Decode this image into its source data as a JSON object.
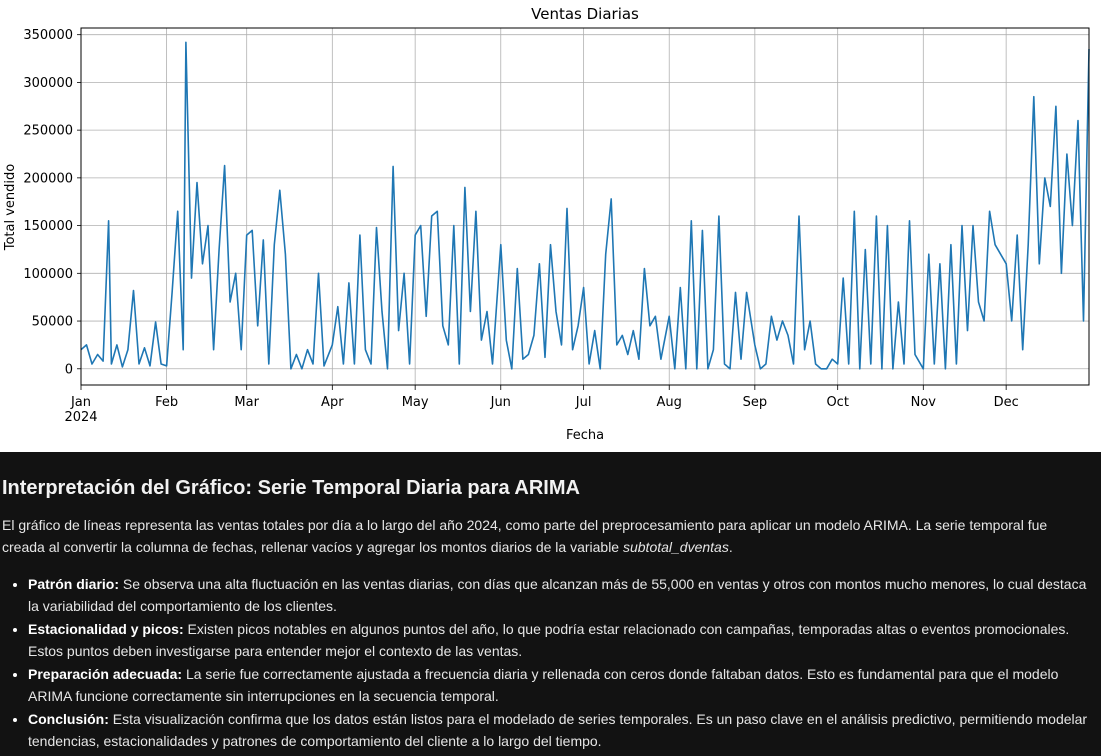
{
  "chart_data": {
    "type": "line",
    "title": "Ventas Diarias",
    "xlabel": "Fecha",
    "ylabel": "Total vendido",
    "ylim": [
      -17000,
      357000
    ],
    "yticks": [
      0,
      50000,
      100000,
      150000,
      200000,
      250000,
      300000,
      350000
    ],
    "ytick_labels": [
      "0",
      "50000",
      "100000",
      "150000",
      "200000",
      "250000",
      "300000",
      "350000"
    ],
    "xlim": [
      "2024-01-01",
      "2024-12-31"
    ],
    "xtick_labels": [
      "Jan",
      "Feb",
      "Mar",
      "Apr",
      "May",
      "Jun",
      "Jul",
      "Aug",
      "Sep",
      "Oct",
      "Nov",
      "Dec"
    ],
    "xtick_dates": [
      "2024-01-01",
      "2024-02-01",
      "2024-03-01",
      "2024-04-01",
      "2024-05-01",
      "2024-06-01",
      "2024-07-01",
      "2024-08-01",
      "2024-09-01",
      "2024-10-01",
      "2024-11-01",
      "2024-12-01"
    ],
    "year_label": "2024",
    "grid": true,
    "series_color": "#1f77b4",
    "x": [
      "2024-01-01",
      "2024-01-03",
      "2024-01-05",
      "2024-01-07",
      "2024-01-09",
      "2024-01-11",
      "2024-01-12",
      "2024-01-14",
      "2024-01-16",
      "2024-01-18",
      "2024-01-20",
      "2024-01-22",
      "2024-01-24",
      "2024-01-26",
      "2024-01-28",
      "2024-01-30",
      "2024-02-01",
      "2024-02-03",
      "2024-02-05",
      "2024-02-07",
      "2024-02-08",
      "2024-02-10",
      "2024-02-12",
      "2024-02-14",
      "2024-02-16",
      "2024-02-18",
      "2024-02-20",
      "2024-02-22",
      "2024-02-24",
      "2024-02-26",
      "2024-02-28",
      "2024-03-01",
      "2024-03-03",
      "2024-03-05",
      "2024-03-07",
      "2024-03-09",
      "2024-03-11",
      "2024-03-13",
      "2024-03-15",
      "2024-03-17",
      "2024-03-19",
      "2024-03-21",
      "2024-03-23",
      "2024-03-25",
      "2024-03-27",
      "2024-03-29",
      "2024-04-01",
      "2024-04-03",
      "2024-04-05",
      "2024-04-07",
      "2024-04-09",
      "2024-04-11",
      "2024-04-13",
      "2024-04-15",
      "2024-04-17",
      "2024-04-19",
      "2024-04-21",
      "2024-04-23",
      "2024-04-25",
      "2024-04-27",
      "2024-04-29",
      "2024-05-01",
      "2024-05-03",
      "2024-05-05",
      "2024-05-07",
      "2024-05-09",
      "2024-05-11",
      "2024-05-13",
      "2024-05-15",
      "2024-05-17",
      "2024-05-19",
      "2024-05-21",
      "2024-05-23",
      "2024-05-25",
      "2024-05-27",
      "2024-05-29",
      "2024-06-01",
      "2024-06-03",
      "2024-06-05",
      "2024-06-07",
      "2024-06-09",
      "2024-06-11",
      "2024-06-13",
      "2024-06-15",
      "2024-06-17",
      "2024-06-19",
      "2024-06-21",
      "2024-06-23",
      "2024-06-25",
      "2024-06-27",
      "2024-06-29",
      "2024-07-01",
      "2024-07-03",
      "2024-07-05",
      "2024-07-07",
      "2024-07-09",
      "2024-07-11",
      "2024-07-13",
      "2024-07-15",
      "2024-07-17",
      "2024-07-19",
      "2024-07-21",
      "2024-07-23",
      "2024-07-25",
      "2024-07-27",
      "2024-07-29",
      "2024-08-01",
      "2024-08-03",
      "2024-08-05",
      "2024-08-07",
      "2024-08-09",
      "2024-08-11",
      "2024-08-13",
      "2024-08-15",
      "2024-08-17",
      "2024-08-19",
      "2024-08-21",
      "2024-08-23",
      "2024-08-25",
      "2024-08-27",
      "2024-08-29",
      "2024-09-01",
      "2024-09-03",
      "2024-09-05",
      "2024-09-07",
      "2024-09-09",
      "2024-09-11",
      "2024-09-13",
      "2024-09-15",
      "2024-09-17",
      "2024-09-19",
      "2024-09-21",
      "2024-09-23",
      "2024-09-25",
      "2024-09-27",
      "2024-09-29",
      "2024-10-01",
      "2024-10-03",
      "2024-10-05",
      "2024-10-07",
      "2024-10-09",
      "2024-10-11",
      "2024-10-13",
      "2024-10-15",
      "2024-10-17",
      "2024-10-19",
      "2024-10-21",
      "2024-10-23",
      "2024-10-25",
      "2024-10-27",
      "2024-10-29",
      "2024-11-01",
      "2024-11-03",
      "2024-11-05",
      "2024-11-07",
      "2024-11-09",
      "2024-11-11",
      "2024-11-13",
      "2024-11-15",
      "2024-11-17",
      "2024-11-19",
      "2024-11-21",
      "2024-11-23",
      "2024-11-25",
      "2024-11-27",
      "2024-11-29",
      "2024-12-01",
      "2024-12-03",
      "2024-12-05",
      "2024-12-07",
      "2024-12-09",
      "2024-12-11",
      "2024-12-13",
      "2024-12-15",
      "2024-12-17",
      "2024-12-19",
      "2024-12-21",
      "2024-12-23",
      "2024-12-25",
      "2024-12-27",
      "2024-12-29",
      "2024-12-31"
    ],
    "values": [
      20000,
      25000,
      5000,
      15000,
      8000,
      155000,
      5000,
      25000,
      2000,
      20000,
      82000,
      5000,
      22000,
      3000,
      49000,
      5000,
      3000,
      80000,
      165000,
      20000,
      342000,
      95000,
      195000,
      110000,
      150000,
      20000,
      125000,
      213000,
      70000,
      100000,
      20000,
      140000,
      145000,
      45000,
      135000,
      5000,
      130000,
      187000,
      120000,
      0,
      15000,
      0,
      20000,
      5000,
      100000,
      3000,
      25000,
      65000,
      5000,
      90000,
      5000,
      140000,
      20000,
      5000,
      148000,
      60000,
      0,
      212000,
      40000,
      100000,
      5000,
      140000,
      150000,
      55000,
      160000,
      165000,
      45000,
      25000,
      150000,
      5000,
      190000,
      60000,
      165000,
      30000,
      60000,
      5000,
      130000,
      30000,
      0,
      105000,
      10000,
      15000,
      35000,
      110000,
      12000,
      130000,
      60000,
      25000,
      168000,
      20000,
      45000,
      85000,
      5000,
      40000,
      0,
      120000,
      178000,
      25000,
      35000,
      15000,
      40000,
      10000,
      105000,
      45000,
      55000,
      10000,
      55000,
      0,
      85000,
      0,
      155000,
      0,
      145000,
      0,
      20000,
      160000,
      5000,
      0,
      80000,
      10000,
      80000,
      25000,
      0,
      5000,
      55000,
      30000,
      50000,
      35000,
      5000,
      160000,
      20000,
      50000,
      5000,
      0,
      0,
      10000,
      5000,
      95000,
      5000,
      165000,
      0,
      125000,
      5000,
      160000,
      0,
      150000,
      0,
      70000,
      5000,
      155000,
      15000,
      0,
      120000,
      5000,
      110000,
      0,
      130000,
      5000,
      150000,
      40000,
      150000,
      70000,
      50000,
      165000,
      130000,
      120000,
      110000,
      50000,
      140000,
      20000,
      130000,
      285000,
      110000,
      200000,
      170000,
      275000,
      100000,
      225000,
      150000,
      260000,
      50000,
      335000
    ]
  },
  "panel": {
    "heading": "Interpretación del Gráfico: Serie Temporal Diaria para ARIMA",
    "intro_text": "El gráfico de líneas representa las ventas totales por día a lo largo del año 2024, como parte del preprocesamiento para aplicar un modelo ARIMA. La serie temporal fue creada al convertir la columna de fechas, rellenar vacíos y agregar los montos diarios de la variable ",
    "intro_var": "subtotal_dventas",
    "intro_end": ".",
    "bullets": [
      {
        "label": "Patrón diario:",
        "text": " Se observa una alta fluctuación en las ventas diarias, con días que alcanzan más de 55,000 en ventas y otros con montos mucho menores, lo cual destaca la variabilidad del comportamiento de los clientes."
      },
      {
        "label": "Estacionalidad y picos:",
        "text": " Existen picos notables en algunos puntos del año, lo que podría estar relacionado con campañas, temporadas altas o eventos promocionales. Estos puntos deben investigarse para entender mejor el contexto de las ventas."
      },
      {
        "label": "Preparación adecuada:",
        "text": " La serie fue correctamente ajustada a frecuencia diaria y rellenada con ceros donde faltaban datos. Esto es fundamental para que el modelo ARIMA funcione correctamente sin interrupciones en la secuencia temporal."
      },
      {
        "label": "Conclusión:",
        "text": " Esta visualización confirma que los datos están listos para el modelado de series temporales. Es un paso clave en el análisis predictivo, permitiendo modelar tendencias, estacionalidades y patrones de comportamiento del cliente a lo largo del tiempo."
      }
    ]
  }
}
